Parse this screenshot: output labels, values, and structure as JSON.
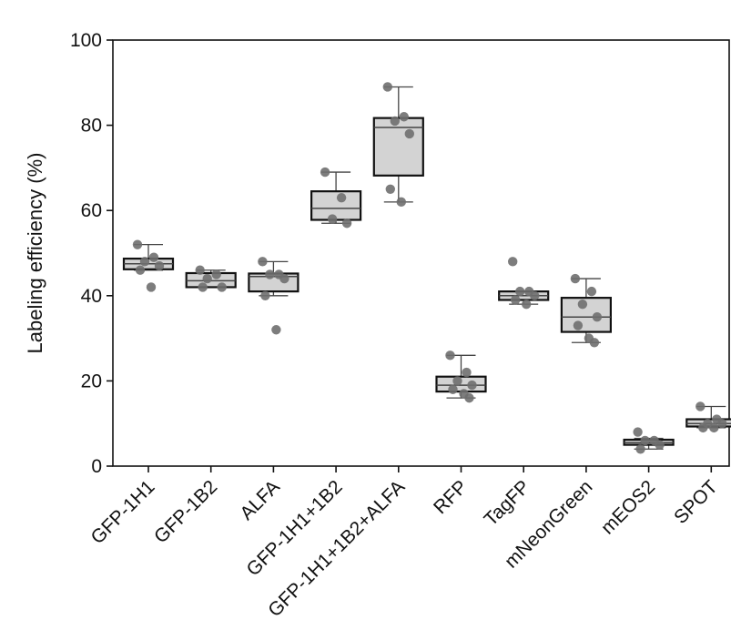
{
  "chart_data": {
    "type": "box",
    "title": "",
    "xlabel": "",
    "ylabel": "Labeling efficiency (%)",
    "ylim": [
      0,
      100
    ],
    "yticks": [
      0,
      20,
      40,
      60,
      80,
      100
    ],
    "grid": false,
    "legend": "none",
    "box_fill": "#d3d3d3",
    "point_color": "#6f6f6f",
    "categories": [
      "GFP-1H1",
      "GFP-1B2",
      "ALFA",
      "GFP-1H1+1B2",
      "GFP-1H1+1B2+ALFA",
      "RFP",
      "TagFP",
      "mNeonGreen",
      "mEOS2",
      "SPOT"
    ],
    "boxes": [
      {
        "q1": 46.2,
        "median": 47.5,
        "q3": 48.7,
        "whisker_low": 46,
        "whisker_high": 52,
        "points": [
          52,
          49,
          48,
          47,
          46,
          42
        ]
      },
      {
        "q1": 42,
        "median": 43.5,
        "q3": 45.3,
        "whisker_low": 42,
        "whisker_high": 46,
        "points": [
          46,
          45,
          44,
          42,
          42
        ]
      },
      {
        "q1": 41,
        "median": 44.5,
        "q3": 45.2,
        "whisker_low": 40,
        "whisker_high": 48,
        "points": [
          48,
          45,
          45,
          44,
          40,
          32
        ]
      },
      {
        "q1": 57.8,
        "median": 60.5,
        "q3": 64.5,
        "whisker_low": 57,
        "whisker_high": 69,
        "points": [
          69,
          63,
          58,
          57
        ]
      },
      {
        "q1": 68.2,
        "median": 79.5,
        "q3": 81.7,
        "whisker_low": 62,
        "whisker_high": 89,
        "points": [
          89,
          82,
          81,
          78,
          65,
          62
        ]
      },
      {
        "q1": 17.5,
        "median": 19,
        "q3": 21,
        "whisker_low": 16,
        "whisker_high": 26,
        "points": [
          26,
          22,
          20,
          19,
          18,
          17,
          16
        ]
      },
      {
        "q1": 39,
        "median": 40,
        "q3": 41,
        "whisker_low": 38,
        "whisker_high": 41,
        "points": [
          48,
          41,
          41,
          40,
          39,
          38
        ]
      },
      {
        "q1": 31.5,
        "median": 35,
        "q3": 39.5,
        "whisker_low": 29,
        "whisker_high": 44,
        "points": [
          44,
          41,
          38,
          35,
          33,
          30,
          29
        ]
      },
      {
        "q1": 5,
        "median": 5.5,
        "q3": 6.2,
        "whisker_low": 4,
        "whisker_high": 6.5,
        "points": [
          8,
          6,
          6,
          5,
          4
        ]
      },
      {
        "q1": 9.3,
        "median": 10,
        "q3": 11,
        "whisker_low": 9,
        "whisker_high": 14,
        "points": [
          14,
          11,
          10,
          10,
          9,
          9
        ]
      }
    ]
  }
}
